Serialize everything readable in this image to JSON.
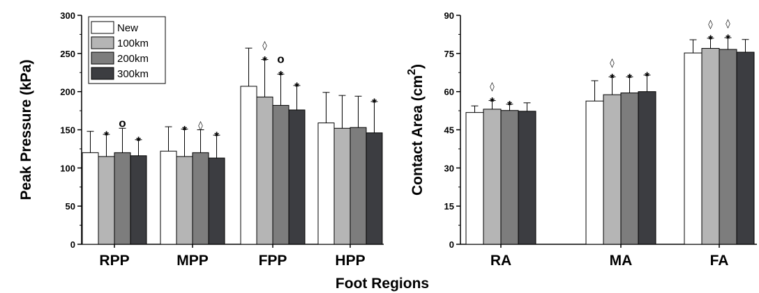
{
  "series_colors": [
    "#ffffff",
    "#b5b5b5",
    "#7d7d7d",
    "#3c3d41"
  ],
  "chart_data": [
    {
      "type": "bar",
      "ylabel": "Peak Pressure (kPa)",
      "ylim": [
        0,
        300
      ],
      "yticks": [
        "0",
        "50",
        "100",
        "150",
        "200",
        "250",
        "300"
      ],
      "categories": [
        "RPP",
        "MPP",
        "FPP",
        "HPP"
      ],
      "legend_position": "top-left",
      "series": [
        {
          "name": "New",
          "values": [
            120,
            122,
            207,
            159
          ],
          "errors": [
            28,
            32,
            50,
            40
          ],
          "annotations": [
            "",
            "",
            "",
            ""
          ]
        },
        {
          "name": "100km",
          "values": [
            115,
            115,
            193,
            152
          ],
          "errors": [
            29,
            36,
            49,
            43
          ],
          "annotations": [
            "*",
            "*",
            "*|◊",
            ""
          ]
        },
        {
          "name": "200km",
          "values": [
            120,
            120,
            182,
            153
          ],
          "errors": [
            32,
            30,
            41,
            41
          ],
          "annotations": [
            "o",
            "◊",
            "*|o",
            ""
          ]
        },
        {
          "name": "300km",
          "values": [
            116,
            113,
            176,
            146
          ],
          "errors": [
            21,
            30,
            32,
            41
          ],
          "annotations": [
            "*",
            "*",
            "*",
            "*"
          ]
        }
      ]
    },
    {
      "type": "bar",
      "ylabel": "Contact Area (cm",
      "ylabel_sup": "2",
      "ylabel_end": ")",
      "ylim": [
        0,
        90
      ],
      "yticks": [
        "0",
        "15",
        "30",
        "45",
        "60",
        "75",
        "90"
      ],
      "categories": [
        "RA",
        "MA",
        "FA"
      ],
      "series": [
        {
          "name": "New",
          "values": [
            51.8,
            56.3,
            75.2
          ],
          "errors": [
            2.6,
            8,
            5.2
          ],
          "annotations": [
            "",
            "",
            ""
          ]
        },
        {
          "name": "100km",
          "values": [
            53.1,
            58.8,
            77.0
          ],
          "errors": [
            3.4,
            7,
            4.0
          ],
          "annotations": [
            "*|◊",
            "*|◊",
            "*|◊"
          ]
        },
        {
          "name": "200km",
          "values": [
            52.6,
            59.5,
            76.6
          ],
          "errors": [
            2.5,
            6.3,
            4.6
          ],
          "annotations": [
            "*",
            "*",
            "*|◊"
          ]
        },
        {
          "name": "300km",
          "values": [
            52.3,
            60.0,
            75.5
          ],
          "errors": [
            3.3,
            6.5,
            5.0
          ],
          "annotations": [
            "",
            "*",
            ""
          ]
        }
      ]
    }
  ],
  "xlabel": "Foot Regions"
}
